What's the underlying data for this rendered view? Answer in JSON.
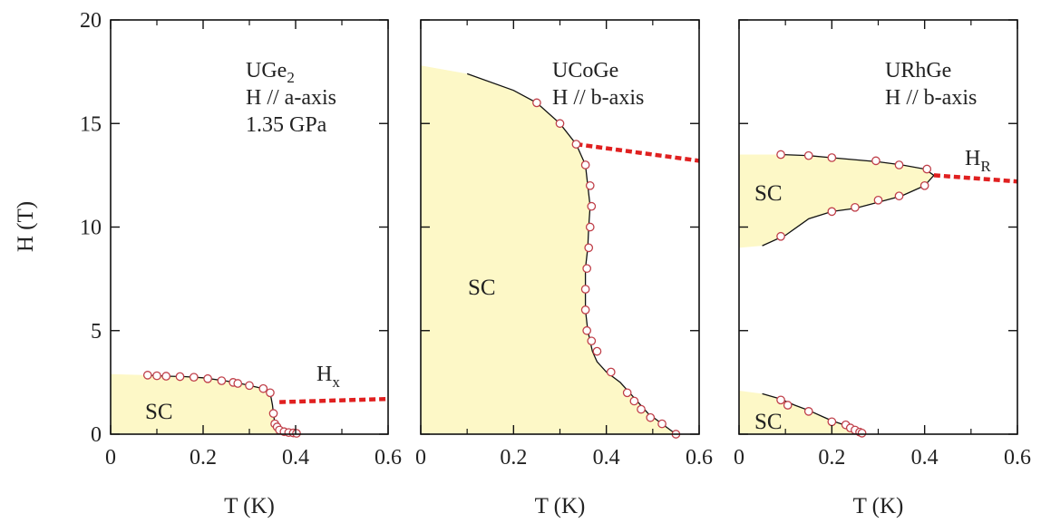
{
  "figure": {
    "ylabel": "H (T)",
    "ylim": [
      0,
      20
    ],
    "yticks": [
      "0",
      "5",
      "10",
      "15",
      "20"
    ]
  },
  "chart_data": [
    {
      "type": "scatter",
      "xlabel": "T (K)",
      "xlim": [
        0,
        0.6
      ],
      "xticks": [
        "0",
        "0.2",
        "0.4",
        "0.6"
      ],
      "annotation": {
        "lines": [
          "UGe",
          "H // a-axis",
          "1.35 GPa"
        ],
        "subscript": "2"
      },
      "region_label": "SC",
      "transition_label": {
        "main": "H",
        "sub": "x"
      },
      "sc_region": [
        [
          0,
          0
        ],
        [
          0,
          2.9
        ],
        [
          0.08,
          2.85
        ],
        [
          0.12,
          2.8
        ],
        [
          0.16,
          2.78
        ],
        [
          0.2,
          2.72
        ],
        [
          0.24,
          2.6
        ],
        [
          0.27,
          2.5
        ],
        [
          0.3,
          2.35
        ],
        [
          0.33,
          2.2
        ],
        [
          0.345,
          2.0
        ],
        [
          0.35,
          1.4
        ],
        [
          0.352,
          1.0
        ],
        [
          0.355,
          0.5
        ],
        [
          0.365,
          0.2
        ],
        [
          0.38,
          0.1
        ],
        [
          0.4,
          0.05
        ],
        [
          0.405,
          0
        ]
      ],
      "points": [
        [
          0.08,
          2.85
        ],
        [
          0.1,
          2.82
        ],
        [
          0.12,
          2.8
        ],
        [
          0.15,
          2.78
        ],
        [
          0.18,
          2.75
        ],
        [
          0.21,
          2.68
        ],
        [
          0.24,
          2.58
        ],
        [
          0.265,
          2.5
        ],
        [
          0.275,
          2.45
        ],
        [
          0.3,
          2.35
        ],
        [
          0.33,
          2.2
        ],
        [
          0.345,
          2.0
        ],
        [
          0.352,
          1.0
        ],
        [
          0.355,
          0.5
        ],
        [
          0.36,
          0.35
        ],
        [
          0.365,
          0.2
        ],
        [
          0.375,
          0.12
        ],
        [
          0.385,
          0.08
        ],
        [
          0.395,
          0.06
        ],
        [
          0.402,
          0.04
        ]
      ],
      "transition_line": [
        [
          0.365,
          1.55
        ],
        [
          0.6,
          1.7
        ]
      ]
    },
    {
      "type": "scatter",
      "xlabel": "T (K)",
      "xlim": [
        0,
        0.6
      ],
      "xticks": [
        "0",
        "0.2",
        "0.4",
        "0.6"
      ],
      "annotation": {
        "lines": [
          "UCoGe",
          "H // b-axis"
        ]
      },
      "region_label": "SC",
      "sc_region": [
        [
          0,
          0
        ],
        [
          0,
          17.8
        ],
        [
          0.1,
          17.4
        ],
        [
          0.2,
          16.6
        ],
        [
          0.25,
          16.0
        ],
        [
          0.3,
          15.0
        ],
        [
          0.335,
          14.0
        ],
        [
          0.355,
          13.0
        ],
        [
          0.36,
          12.0
        ],
        [
          0.365,
          11.0
        ],
        [
          0.362,
          10.0
        ],
        [
          0.36,
          9.0
        ],
        [
          0.355,
          8.0
        ],
        [
          0.355,
          7.0
        ],
        [
          0.355,
          6.0
        ],
        [
          0.36,
          5.0
        ],
        [
          0.37,
          4.0
        ],
        [
          0.38,
          3.5
        ],
        [
          0.4,
          3.0
        ],
        [
          0.43,
          2.5
        ],
        [
          0.45,
          2.0
        ],
        [
          0.47,
          1.5
        ],
        [
          0.49,
          1.0
        ],
        [
          0.52,
          0.5
        ],
        [
          0.55,
          0
        ]
      ],
      "points": [
        [
          0.25,
          16.0
        ],
        [
          0.3,
          15.0
        ],
        [
          0.335,
          14.0
        ],
        [
          0.355,
          13.0
        ],
        [
          0.365,
          12.0
        ],
        [
          0.368,
          11.0
        ],
        [
          0.365,
          10.0
        ],
        [
          0.362,
          9.0
        ],
        [
          0.358,
          8.0
        ],
        [
          0.355,
          7.0
        ],
        [
          0.355,
          6.0
        ],
        [
          0.358,
          5.0
        ],
        [
          0.368,
          4.5
        ],
        [
          0.38,
          4.0
        ],
        [
          0.41,
          3.0
        ],
        [
          0.445,
          2.0
        ],
        [
          0.46,
          1.6
        ],
        [
          0.475,
          1.2
        ],
        [
          0.495,
          0.8
        ],
        [
          0.52,
          0.5
        ],
        [
          0.55,
          0
        ]
      ],
      "transition_line": [
        [
          0.335,
          14.0
        ],
        [
          0.6,
          13.2
        ]
      ]
    },
    {
      "type": "scatter",
      "xlabel": "T (K)",
      "xlim": [
        0,
        0.6
      ],
      "xticks": [
        "0",
        "0.2",
        "0.4",
        "0.6"
      ],
      "annotation": {
        "lines": [
          "URhGe",
          "H // b-axis"
        ]
      },
      "region_label": "SC",
      "region_label_low": "SC",
      "transition_label": {
        "main": "H",
        "sub": "R"
      },
      "sc_region": [
        [
          0,
          9.0
        ],
        [
          0,
          13.5
        ],
        [
          0.09,
          13.5
        ],
        [
          0.15,
          13.45
        ],
        [
          0.2,
          13.35
        ],
        [
          0.3,
          13.15
        ],
        [
          0.35,
          13.0
        ],
        [
          0.4,
          12.8
        ],
        [
          0.42,
          12.5
        ],
        [
          0.4,
          12.0
        ],
        [
          0.35,
          11.5
        ],
        [
          0.3,
          11.2
        ],
        [
          0.25,
          10.9
        ],
        [
          0.2,
          10.75
        ],
        [
          0.15,
          10.4
        ],
        [
          0.1,
          9.6
        ],
        [
          0.05,
          9.1
        ],
        [
          0,
          9.0
        ]
      ],
      "sc_region_low": [
        [
          0,
          0
        ],
        [
          0,
          2.1
        ],
        [
          0.05,
          1.95
        ],
        [
          0.09,
          1.7
        ],
        [
          0.12,
          1.4
        ],
        [
          0.15,
          1.15
        ],
        [
          0.18,
          0.85
        ],
        [
          0.2,
          0.65
        ],
        [
          0.22,
          0.5
        ],
        [
          0.24,
          0.35
        ],
        [
          0.26,
          0.15
        ],
        [
          0.27,
          0
        ]
      ],
      "points": [
        [
          0.09,
          13.5
        ],
        [
          0.15,
          13.45
        ],
        [
          0.2,
          13.35
        ],
        [
          0.295,
          13.2
        ],
        [
          0.345,
          13.0
        ],
        [
          0.405,
          12.8
        ],
        [
          0.4,
          12.0
        ],
        [
          0.345,
          11.5
        ],
        [
          0.3,
          11.3
        ],
        [
          0.25,
          10.95
        ],
        [
          0.2,
          10.75
        ],
        [
          0.09,
          9.55
        ],
        [
          0.09,
          1.65
        ],
        [
          0.105,
          1.4
        ],
        [
          0.15,
          1.1
        ],
        [
          0.2,
          0.6
        ],
        [
          0.23,
          0.45
        ],
        [
          0.24,
          0.3
        ],
        [
          0.25,
          0.2
        ],
        [
          0.26,
          0.1
        ],
        [
          0.265,
          0.05
        ]
      ],
      "transition_line": [
        [
          0.42,
          12.5
        ],
        [
          0.6,
          12.2
        ]
      ]
    }
  ],
  "colors": {
    "sc_fill": "#fdf8c7",
    "boundary": "#111111",
    "marker_edge": "#c0404a",
    "marker_fill": "#ffffff",
    "transition": "#e02020"
  }
}
